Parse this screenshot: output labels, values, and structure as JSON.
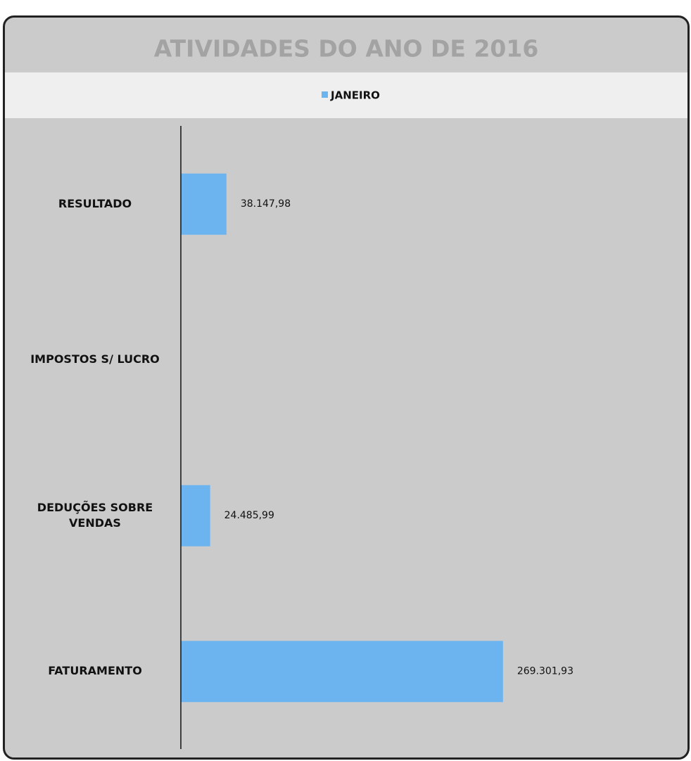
{
  "chart_data": {
    "type": "bar",
    "orientation": "horizontal",
    "title": "ATIVIDADES DO ANO DE 2016",
    "categories": [
      "RESULTADO",
      "IMPOSTOS S/ LUCRO",
      "DEDUÇÕES SOBRE VENDAS",
      "FATURAMENTO"
    ],
    "series": [
      {
        "name": "JANEIRO",
        "color": "#6cb4f0",
        "values": [
          38147.98,
          null,
          24485.99,
          269301.93
        ],
        "value_labels": [
          "38.147,98",
          null,
          "24.485,99",
          "269.301,93"
        ]
      }
    ],
    "xlim": [
      0,
      420000
    ],
    "legend": "top",
    "grid": false
  }
}
